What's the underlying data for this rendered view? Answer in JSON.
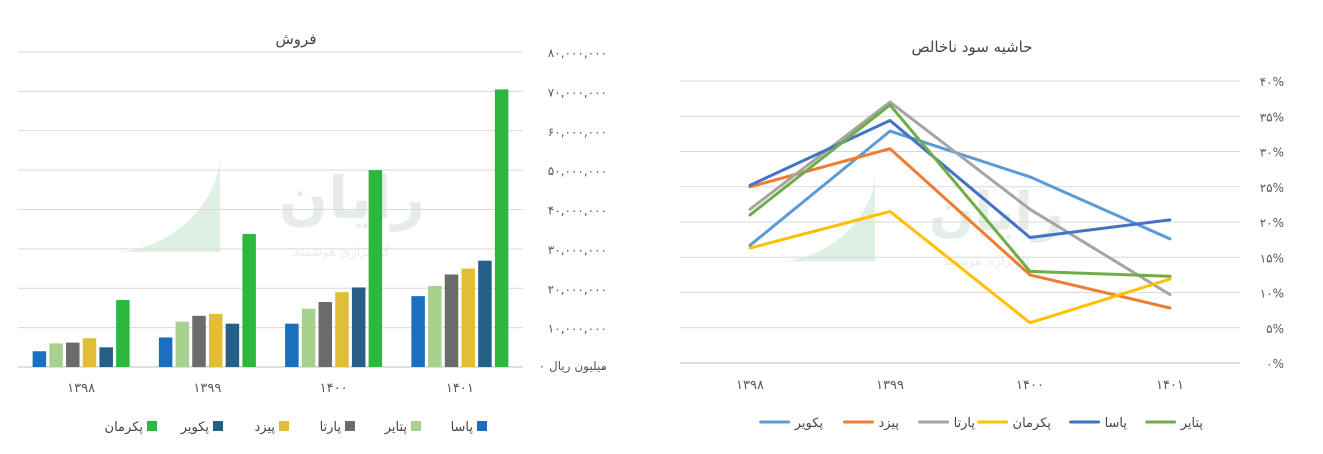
{
  "chart_data": [
    {
      "type": "bar",
      "title": "فروش",
      "unit_label": "میلیون ریال",
      "categories": [
        "۱۳۹۸",
        "۱۳۹۹",
        "۱۴۰۰",
        "۱۴۰۱"
      ],
      "ylim": [
        0,
        80000000
      ],
      "yticks": [
        "۰",
        "۱۰,۰۰۰,۰۰۰",
        "۲۰,۰۰۰,۰۰۰",
        "۳۰,۰۰۰,۰۰۰",
        "۴۰,۰۰۰,۰۰۰",
        "۵۰,۰۰۰,۰۰۰",
        "۶۰,۰۰۰,۰۰۰",
        "۷۰,۰۰۰,۰۰۰",
        "۸۰,۰۰۰,۰۰۰"
      ],
      "grid": true,
      "legend_position": "bottom",
      "series": [
        {
          "name": "پاسا",
          "color": "#1a6fbf",
          "values": [
            4000000,
            7500000,
            11000000,
            18000000
          ]
        },
        {
          "name": "پتایر",
          "color": "#a9d18e",
          "values": [
            6000000,
            11500000,
            14800000,
            20600000
          ]
        },
        {
          "name": "پارتا",
          "color": "#6b6b6b",
          "values": [
            6200000,
            13000000,
            16500000,
            23500000
          ]
        },
        {
          "name": "پیزد",
          "color": "#e2bd36",
          "values": [
            7300000,
            13500000,
            19000000,
            25000000
          ]
        },
        {
          "name": "پکویر",
          "color": "#255e86",
          "values": [
            5000000,
            11000000,
            20200000,
            27000000
          ]
        },
        {
          "name": "پکرمان",
          "color": "#2db83d",
          "values": [
            17000000,
            33800000,
            50000000,
            70500000
          ]
        }
      ]
    },
    {
      "type": "line",
      "title": "حاشیه سود ناخالص",
      "categories": [
        "۱۳۹۸",
        "۱۳۹۹",
        "۱۴۰۰",
        "۱۴۰۱"
      ],
      "ylim": [
        0,
        40
      ],
      "yticks": [
        "۰%",
        "۵%",
        "۱۰%",
        "۱۵%",
        "۲۰%",
        "۲۵%",
        "۳۰%",
        "۳۵%",
        "۴۰%"
      ],
      "grid": true,
      "legend_position": "bottom",
      "series": [
        {
          "name": "پکویر",
          "color": "#5b9bd5",
          "values": [
            16.7,
            32.9,
            26.4,
            17.6
          ]
        },
        {
          "name": "پیزد",
          "color": "#ed7d31",
          "values": [
            25.0,
            30.4,
            12.5,
            7.8
          ]
        },
        {
          "name": "پارتا",
          "color": "#a5a5a5",
          "values": [
            21.8,
            37.0,
            21.8,
            9.7
          ]
        },
        {
          "name": "پکرمان",
          "color": "#ffc000",
          "values": [
            16.3,
            21.5,
            5.7,
            11.9
          ]
        },
        {
          "name": "پاسا",
          "color": "#4472c4",
          "values": [
            25.2,
            34.4,
            17.8,
            20.3
          ]
        },
        {
          "name": "پتایر",
          "color": "#70ad47",
          "values": [
            21.0,
            36.6,
            13.0,
            12.3
          ]
        }
      ]
    }
  ],
  "watermark": {
    "logo_text": "رایان",
    "tagline": "کارگزاری هوشمند"
  }
}
